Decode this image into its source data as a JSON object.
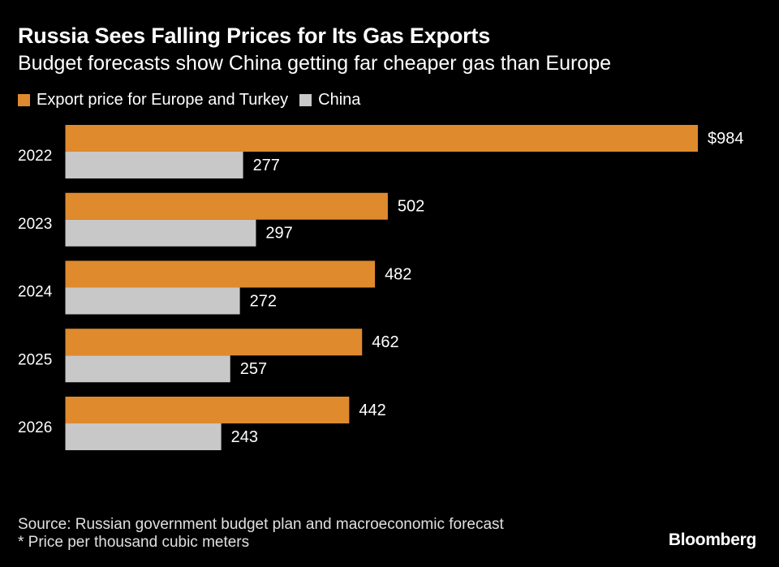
{
  "header": {
    "title": "Russia Sees Falling Prices for Its Gas Exports",
    "subtitle": "Budget forecasts show China getting far cheaper gas than Europe"
  },
  "legend": {
    "europe_label": "Export price for Europe and Turkey",
    "china_label": "China"
  },
  "colors": {
    "europe": "#e08a2e",
    "china": "#c8c8c8",
    "background": "#000000"
  },
  "chart_data": {
    "type": "bar",
    "orientation": "horizontal",
    "title": "Russia Sees Falling Prices for Its Gas Exports",
    "subtitle": "Budget forecasts show China getting far cheaper gas than Europe",
    "categories": [
      "2022",
      "2023",
      "2024",
      "2025",
      "2026"
    ],
    "series": [
      {
        "name": "Export price for Europe and Turkey",
        "values": [
          984,
          502,
          482,
          462,
          442
        ],
        "labels": [
          "$984",
          "502",
          "482",
          "462",
          "442"
        ]
      },
      {
        "name": "China",
        "values": [
          277,
          297,
          272,
          257,
          243
        ],
        "labels": [
          "277",
          "297",
          "272",
          "257",
          "243"
        ]
      }
    ],
    "xlim": [
      0,
      984
    ],
    "grid": false,
    "legend_position": "top-left"
  },
  "footer": {
    "source": "Source: Russian government budget plan and macroeconomic forecast",
    "note": "* Price per thousand cubic meters",
    "brand": "Bloomberg"
  }
}
